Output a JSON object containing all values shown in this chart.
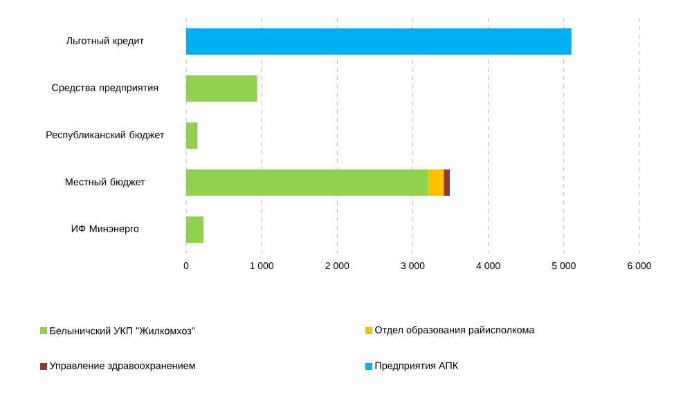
{
  "chart_data": {
    "type": "bar",
    "orientation": "horizontal",
    "stacked": true,
    "categories": [
      "Льготный кредит",
      "Средства предприятия",
      "Республиканский бюджет",
      "Местный бюджет",
      "ИФ Минэнерго"
    ],
    "series": [
      {
        "name": "Белыничский УКП \"Жилкомхоз\"",
        "color": "#92d050",
        "values": [
          null,
          940,
          150,
          3210,
          230
        ]
      },
      {
        "name": "Отдел образования райисполкома",
        "color": "#ffc000",
        "values": [
          null,
          null,
          null,
          200,
          null
        ]
      },
      {
        "name": "Управление здравоохранением",
        "color": "#953735",
        "values": [
          null,
          null,
          null,
          80,
          null
        ]
      },
      {
        "name": "Предприятия  АПК",
        "color": "#00b0f0",
        "values": [
          5100,
          null,
          null,
          null,
          null
        ]
      }
    ],
    "xlim": [
      0,
      6000
    ],
    "xticks": [
      0,
      {
        "value": 1000,
        "label": "1 000"
      },
      {
        "value": 2000,
        "label": "2 000"
      },
      {
        "value": 3000,
        "label": "3 000"
      },
      {
        "value": 4000,
        "label": "4 000"
      },
      {
        "value": 5000,
        "label": "5 000"
      },
      {
        "value": 6000,
        "label": "6 000"
      }
    ],
    "grid": "x",
    "legend": "bottom"
  }
}
